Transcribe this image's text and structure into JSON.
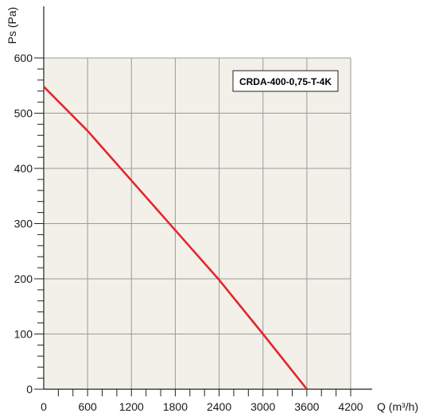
{
  "chart_data": {
    "type": "line",
    "title": "",
    "legend": {
      "label": "CRDA-400-0,75-T-4K",
      "placement": "top-right"
    },
    "xlabel": "Q (m³/h)",
    "ylabel": "Ps (Pa)",
    "xlim": [
      0,
      4200
    ],
    "ylim": [
      0,
      600
    ],
    "x_major_ticks": [
      0,
      600,
      1200,
      1800,
      2400,
      3000,
      3600,
      4200
    ],
    "x_minor_step": 200,
    "y_major_ticks": [
      0,
      100,
      200,
      300,
      400,
      500,
      600
    ],
    "y_minor_step": 20,
    "grid": true,
    "series": [
      {
        "name": "CRDA-400-0,75-T-4K",
        "color": "#e3262b",
        "x": [
          0,
          600,
          1200,
          1800,
          2400,
          3000,
          3600
        ],
        "y": [
          548,
          468,
          378,
          288,
          198,
          100,
          0
        ]
      }
    ],
    "colors": {
      "plot_background": "#f2f0e8",
      "grid": "#9a9a9a",
      "axis": "#222222",
      "line": "#e3262b"
    }
  }
}
